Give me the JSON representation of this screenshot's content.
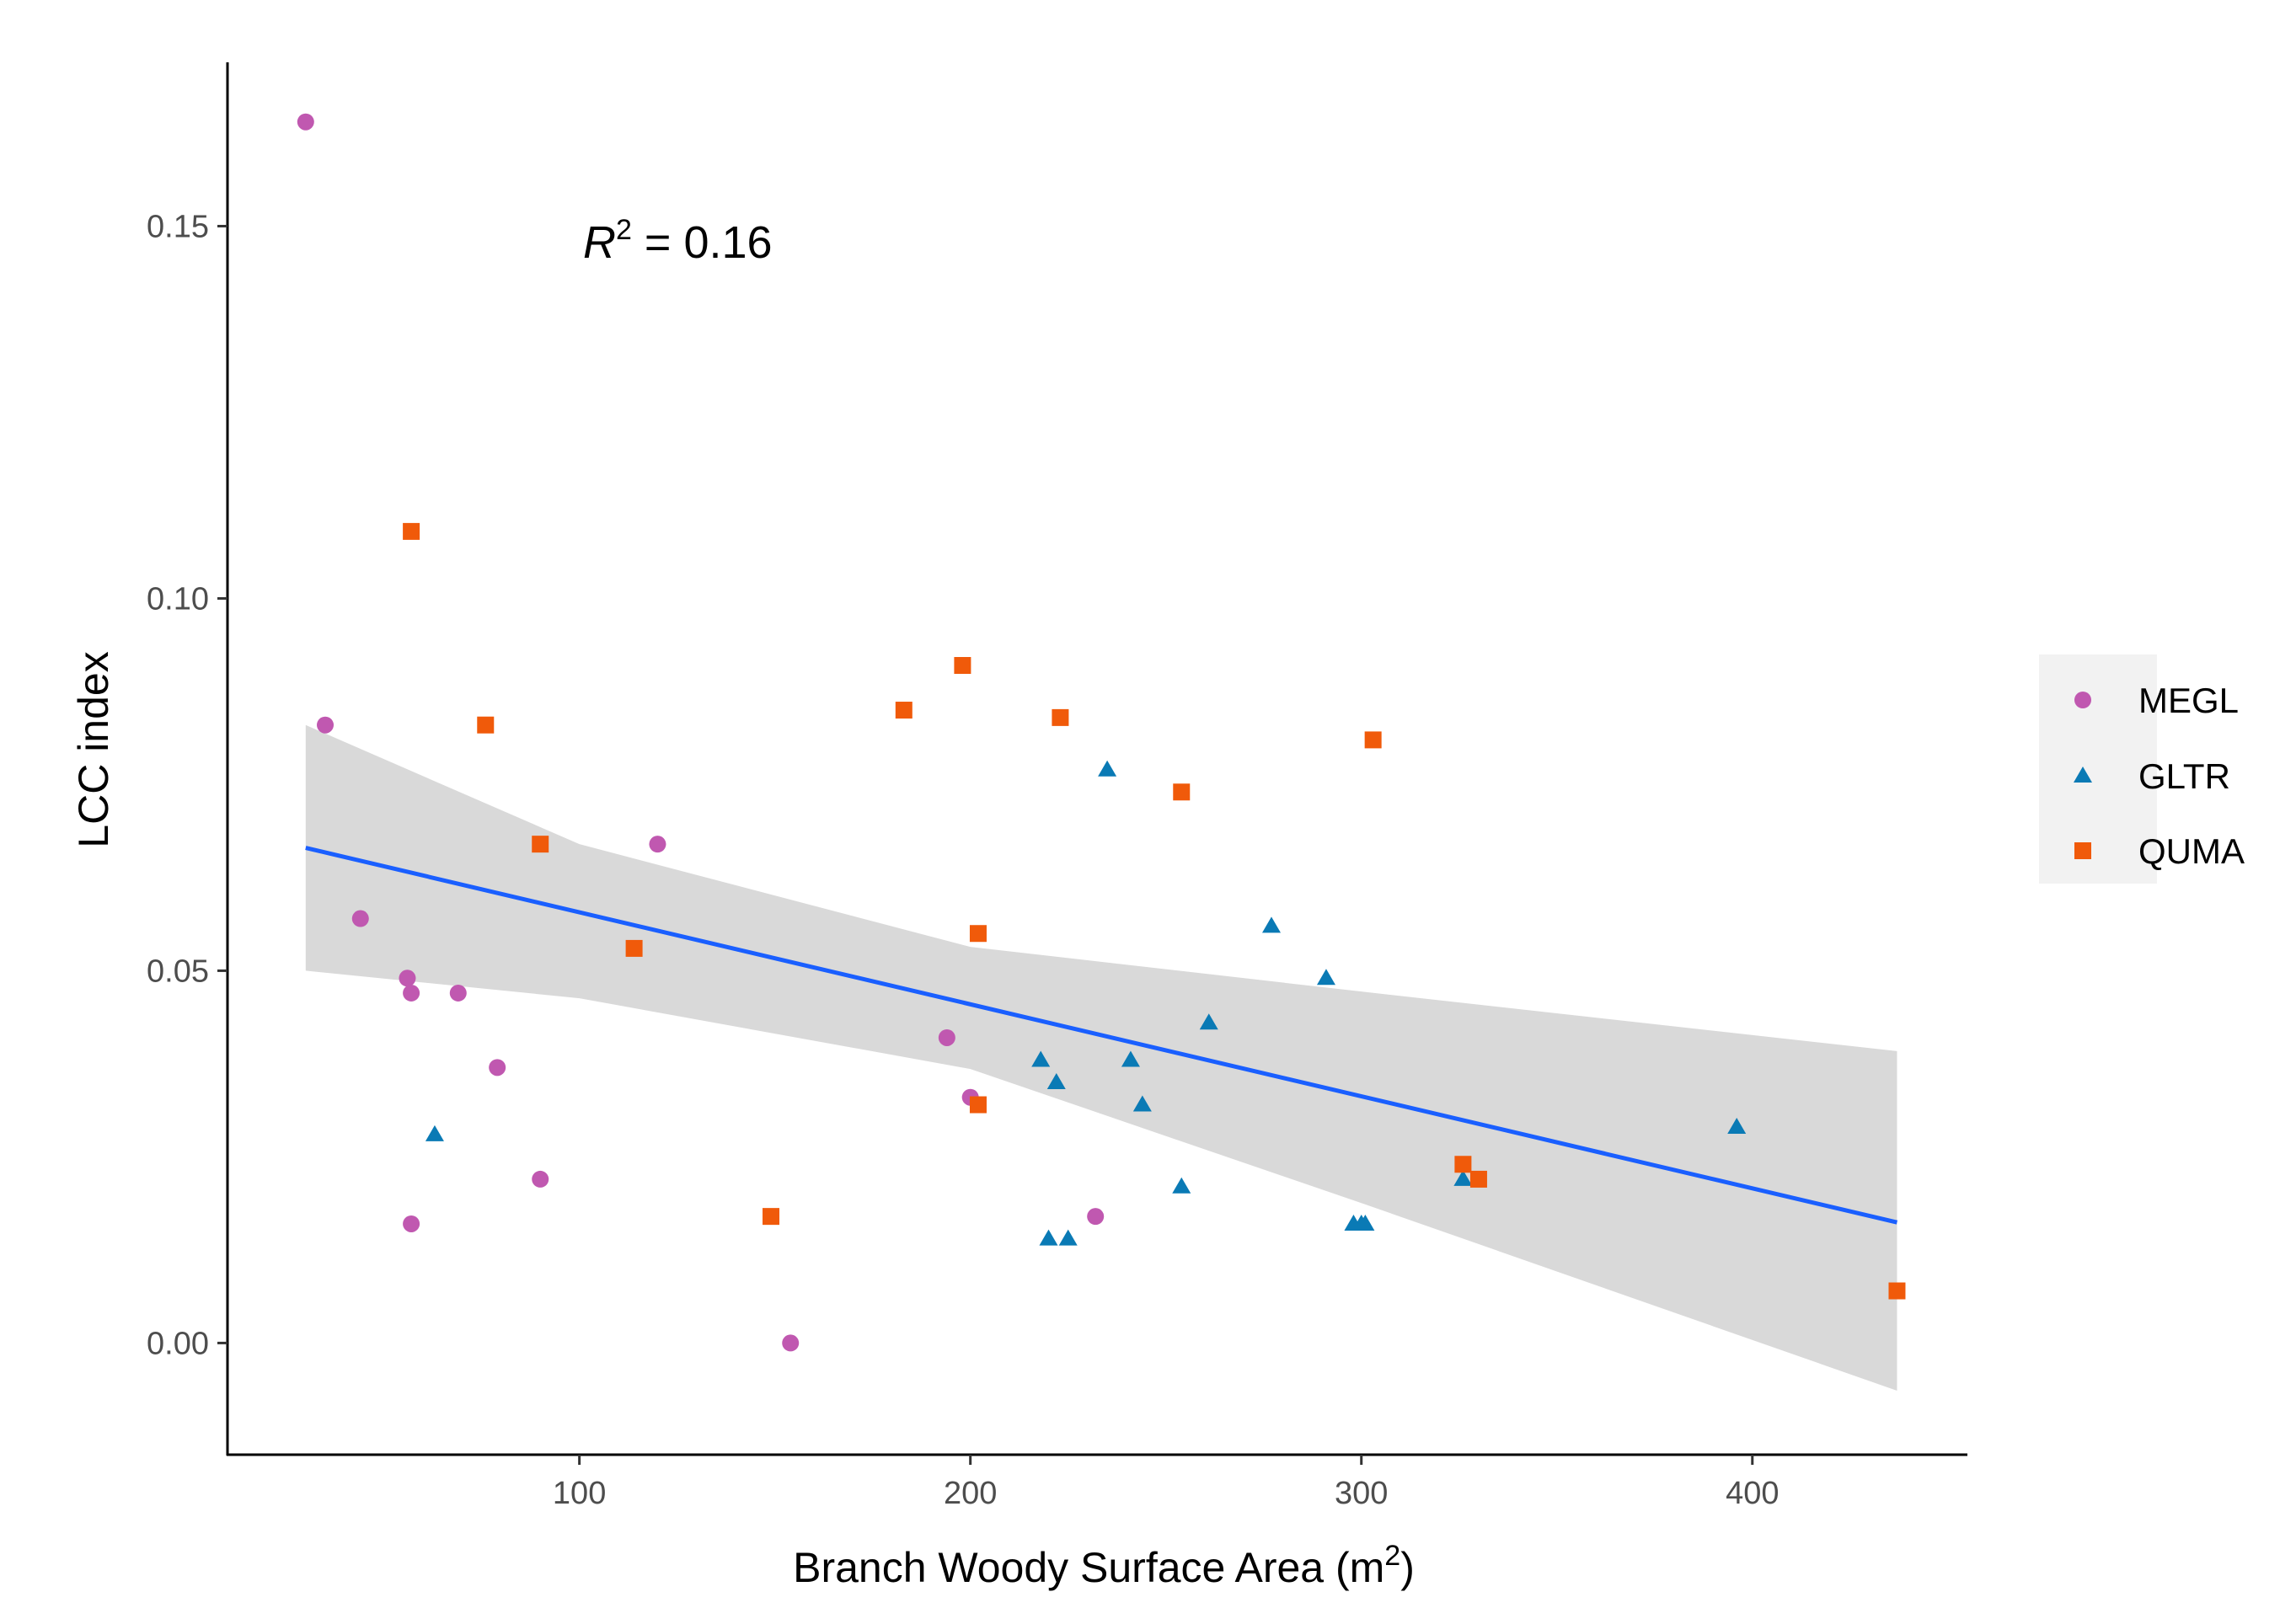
{
  "chart_data": {
    "type": "scatter",
    "xlabel": "Branch Woody Surface Area (m",
    "xlabel_sup": "2",
    "xlabel_end": ")",
    "ylabel": "LCC index",
    "xlim": [
      10,
      455
    ],
    "ylim": [
      -0.015,
      0.172
    ],
    "x_ticks": [
      100,
      200,
      300,
      400
    ],
    "x_tick_labels": [
      "100",
      "200",
      "300",
      "400"
    ],
    "y_ticks": [
      0.0,
      0.05,
      0.1,
      0.15
    ],
    "y_tick_labels": [
      "0.00",
      "0.05",
      "0.10",
      "0.15"
    ],
    "annotation": {
      "r": "R",
      "sup": "2",
      "rest": " = 0.16",
      "x": 100,
      "y": 0.149
    },
    "series": [
      {
        "name": "MEGL",
        "shape": "circle",
        "color": "#c058b0",
        "points": [
          [
            30,
            0.164
          ],
          [
            35,
            0.083
          ],
          [
            44,
            0.057
          ],
          [
            56,
            0.049
          ],
          [
            57,
            0.047
          ],
          [
            57,
            0.016
          ],
          [
            69,
            0.047
          ],
          [
            79,
            0.037
          ],
          [
            90,
            0.022
          ],
          [
            120,
            0.067
          ],
          [
            154,
            0.0
          ],
          [
            194,
            0.041
          ],
          [
            200,
            0.033
          ],
          [
            232,
            0.017
          ]
        ]
      },
      {
        "name": "GLTR",
        "shape": "triangle",
        "color": "#0a7ab5",
        "points": [
          [
            63,
            0.028
          ],
          [
            218,
            0.038
          ],
          [
            220,
            0.014
          ],
          [
            222,
            0.035
          ],
          [
            225,
            0.014
          ],
          [
            235,
            0.077
          ],
          [
            241,
            0.038
          ],
          [
            244,
            0.032
          ],
          [
            254,
            0.021
          ],
          [
            261,
            0.043
          ],
          [
            277,
            0.056
          ],
          [
            291,
            0.049
          ],
          [
            298,
            0.016
          ],
          [
            300,
            0.016
          ],
          [
            301,
            0.016
          ],
          [
            326,
            0.022
          ],
          [
            396,
            0.029
          ]
        ]
      },
      {
        "name": "QUMA",
        "shape": "square",
        "color": "#f05a0a",
        "points": [
          [
            57,
            0.109
          ],
          [
            76,
            0.083
          ],
          [
            90,
            0.067
          ],
          [
            114,
            0.053
          ],
          [
            149,
            0.017
          ],
          [
            183,
            0.085
          ],
          [
            198,
            0.091
          ],
          [
            202,
            0.055
          ],
          [
            202,
            0.032
          ],
          [
            223,
            0.084
          ],
          [
            254,
            0.074
          ],
          [
            303,
            0.081
          ],
          [
            326,
            0.024
          ],
          [
            330,
            0.022
          ],
          [
            437,
            0.007
          ]
        ]
      }
    ],
    "fit_line": {
      "color": "#1a5fff",
      "x": [
        30,
        437
      ],
      "y": [
        0.0665,
        0.0162
      ]
    },
    "confidence_band": {
      "color": "#d9d9d9",
      "x": [
        30,
        100,
        200,
        300,
        437
      ],
      "upper": [
        0.083,
        0.067,
        0.0532,
        0.0472,
        0.0392
      ],
      "lower": [
        0.05,
        0.0463,
        0.0368,
        0.0188,
        -0.0064
      ]
    },
    "legend": {
      "position": "right",
      "entries": [
        "MEGL",
        "GLTR",
        "QUMA"
      ]
    }
  }
}
